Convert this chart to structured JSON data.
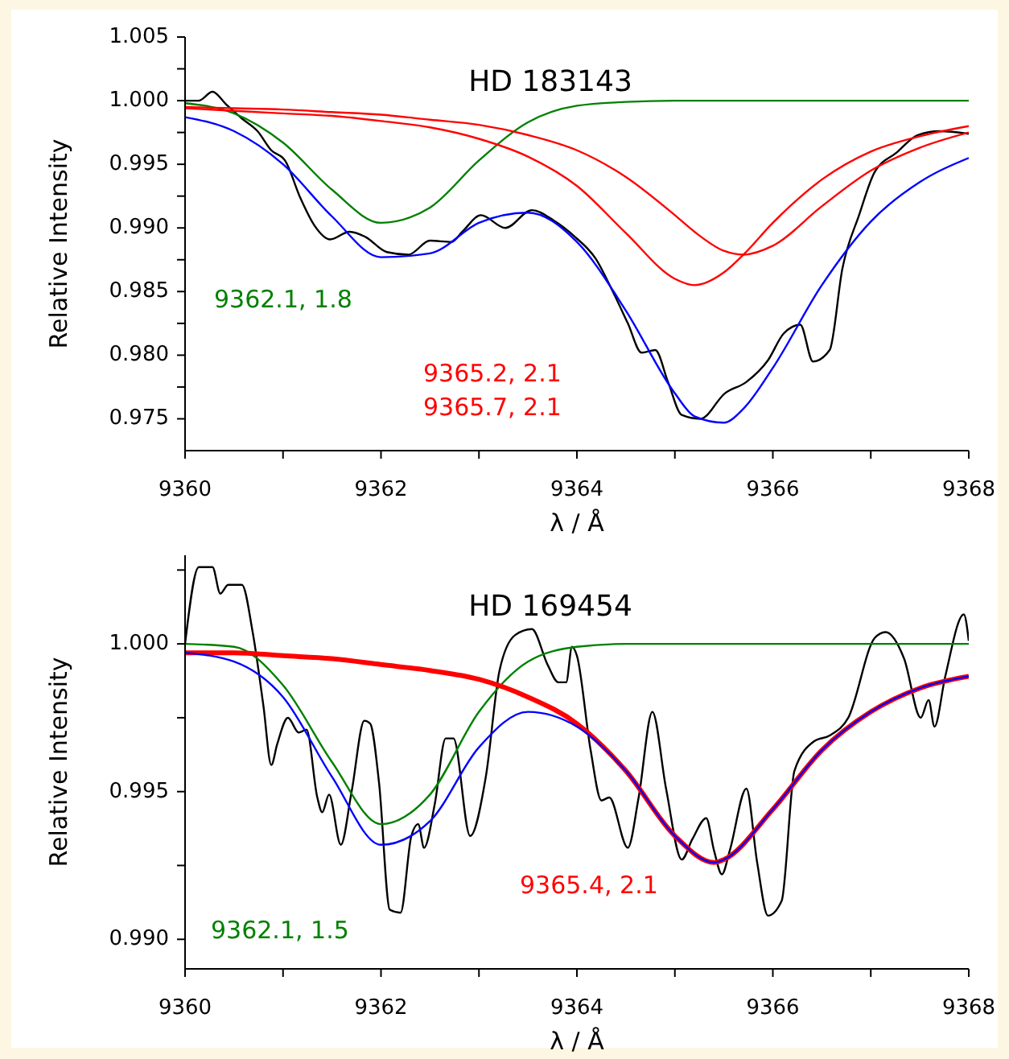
{
  "chart_data": [
    {
      "type": "line",
      "title": "HD 183143",
      "annotations": [
        "9365.2, 2.1",
        "9365.7, 2.1"
      ],
      "xlabel": "λ / Å",
      "ylabel": "Relative Intensity",
      "xlim": [
        9360,
        9368
      ],
      "ylim": [
        0.9725,
        1.005
      ],
      "xticks": [
        9360,
        {
          "value": 9361,
          "label": null
        },
        9362,
        {
          "value": 9363,
          "label": null
        },
        9364,
        {
          "value": 9365,
          "label": null
        },
        9366,
        {
          "value": 9367,
          "label": null
        },
        9368
      ],
      "yticks": [
        {
          "value": 0.975,
          "label": "0.975"
        },
        {
          "value": 0.9775,
          "label": null
        },
        {
          "value": 0.98,
          "label": "0.980"
        },
        {
          "value": 0.9825,
          "label": null
        },
        {
          "value": 0.985,
          "label": "0.985"
        },
        {
          "value": 0.9875,
          "label": null
        },
        {
          "value": 0.99,
          "label": "0.990"
        },
        {
          "value": 0.9925,
          "label": null
        },
        {
          "value": 0.995,
          "label": "0.995"
        },
        {
          "value": 0.9975,
          "label": null
        },
        {
          "value": 1,
          "label": "1.000"
        },
        {
          "value": 1.0025,
          "label": null
        },
        {
          "value": 1.005,
          "label": "1.005"
        }
      ],
      "series": [
        {
          "color": "#000000",
          "x": [
            9360,
            9360.14,
            9360.28,
            9360.42,
            9360.58,
            9360.74,
            9360.88,
            9361.02,
            9361.18,
            9361.32,
            9361.48,
            9361.68,
            9361.84,
            9362.06,
            9362.28,
            9362.5,
            9362.72,
            9362.83,
            9363.02,
            9363.27,
            9363.54,
            9363.76,
            9363.98,
            9364.19,
            9364.36,
            9364.52,
            9364.66,
            9364.8,
            9364.93,
            9365.07,
            9365.26,
            9365.51,
            9365.73,
            9365.95,
            9366.11,
            9366.28,
            9366.41,
            9366.58,
            9366.71,
            9366.88,
            9367.04,
            9367.26,
            9367.48,
            9367.7,
            9368
          ],
          "values": [
            1.0,
            1.0,
            1.0007,
            0.9997,
            0.9986,
            0.9976,
            0.9961,
            0.9953,
            0.9923,
            0.9902,
            0.9891,
            0.9897,
            0.9893,
            0.9881,
            0.9879,
            0.989,
            0.9889,
            0.9897,
            0.991,
            0.99,
            0.9914,
            0.9906,
            0.9893,
            0.9876,
            0.9851,
            0.9825,
            0.9802,
            0.9804,
            0.9779,
            0.9753,
            0.975,
            0.977,
            0.9779,
            0.9796,
            0.9817,
            0.9824,
            0.9795,
            0.9804,
            0.9868,
            0.991,
            0.9944,
            0.9959,
            0.9973,
            0.9976,
            0.9974
          ]
        },
        {
          "color": "#0000ff",
          "x": [
            9360,
            9360.5,
            9361,
            9361.5,
            9362,
            9362.5,
            9363,
            9363.5,
            9364,
            9364.5,
            9365,
            9365.2,
            9365.5,
            9365.7,
            9366,
            9366.5,
            9367,
            9367.5,
            9368
          ],
          "values": [
            0.9987,
            0.9976,
            0.995,
            0.9909,
            0.9877,
            0.988,
            0.9904,
            0.9912,
            0.9889,
            0.9835,
            0.977,
            0.9752,
            0.9747,
            0.9758,
            0.979,
            0.9855,
            0.9905,
            0.9936,
            0.9955
          ]
        },
        {
          "name": "9362.1, 1.8",
          "color": "#008000",
          "x": [
            9360,
            9360.5,
            9361,
            9361.5,
            9362,
            9362.5,
            9363,
            9363.5,
            9364,
            9364.5,
            9365,
            9365.2,
            9365.5,
            9365.7,
            9366,
            9366.5,
            9367,
            9367.5,
            9368
          ],
          "values": [
            0.9998,
            0.999,
            0.9967,
            0.993,
            0.9904,
            0.9916,
            0.9953,
            0.9983,
            0.9996,
            0.9999,
            1.0,
            1.0,
            1.0,
            1.0,
            1.0,
            1.0,
            1.0,
            1.0,
            1.0
          ]
        },
        {
          "color": "#ff0000",
          "x": [
            9360,
            9360.5,
            9361,
            9361.5,
            9362,
            9362.5,
            9363,
            9363.5,
            9364,
            9364.5,
            9365,
            9365.2,
            9365.5,
            9365.7,
            9366,
            9366.5,
            9367,
            9367.5,
            9368
          ],
          "values": [
            0.9994,
            0.9992,
            0.999,
            0.9988,
            0.9984,
            0.9979,
            0.997,
            0.9956,
            0.9933,
            0.9896,
            0.986,
            0.9855,
            0.9865,
            0.9879,
            0.9904,
            0.9938,
            0.996,
            0.9972,
            0.998
          ]
        },
        {
          "color": "#ff0000",
          "x": [
            9360,
            9360.5,
            9361,
            9361.5,
            9362,
            9362.5,
            9363,
            9363.5,
            9364,
            9364.5,
            9365,
            9365.2,
            9365.5,
            9365.7,
            9366,
            9366.5,
            9367,
            9367.5,
            9368
          ],
          "values": [
            0.9995,
            0.9994,
            0.9993,
            0.9991,
            0.9989,
            0.9985,
            0.9981,
            0.9973,
            0.9961,
            0.994,
            0.991,
            0.9897,
            0.9882,
            0.9879,
            0.9886,
            0.9917,
            0.9945,
            0.9963,
            0.9975
          ]
        }
      ]
    },
    {
      "type": "line",
      "title": "HD 169454",
      "xlabel": "λ / Å",
      "ylabel": "Relative Intensity",
      "xlim": [
        9360,
        9368
      ],
      "ylim": [
        0.989,
        1.003
      ],
      "xticks": [
        9360,
        {
          "value": 9361,
          "label": null
        },
        9362,
        {
          "value": 9363,
          "label": null
        },
        9364,
        {
          "value": 9365,
          "label": null
        },
        9366,
        {
          "value": 9367,
          "label": null
        },
        9368
      ],
      "yticks": [
        {
          "value": 0.99,
          "label": "0.990"
        },
        {
          "value": 0.9925,
          "label": null
        },
        {
          "value": 0.995,
          "label": "0.995"
        },
        {
          "value": 0.9975,
          "label": null
        },
        {
          "value": 1,
          "label": "1.000"
        },
        {
          "value": 1.0025,
          "label": null
        }
      ],
      "series": [
        {
          "color": "#000000",
          "x": [
            9360,
            9360.14,
            9360.28,
            9360.36,
            9360.44,
            9360.58,
            9360.69,
            9360.8,
            9360.88,
            9360.94,
            9361.05,
            9361.16,
            9361.24,
            9361.35,
            9361.4,
            9361.47,
            9361.59,
            9361.7,
            9361.83,
            9361.89,
            9361.98,
            9362.09,
            9362.2,
            9362.31,
            9362.38,
            9362.44,
            9362.55,
            9362.66,
            9362.74,
            9362.91,
            9363.07,
            9363.21,
            9363.37,
            9363.54,
            9363.7,
            9363.81,
            9363.89,
            9363.95,
            9364.0,
            9364.14,
            9364.25,
            9364.33,
            9364.52,
            9364.63,
            9364.77,
            9364.91,
            9365.07,
            9365.18,
            9365.32,
            9365.4,
            9365.48,
            9365.56,
            9365.73,
            9365.84,
            9365.95,
            9366.09,
            9366.22,
            9366.42,
            9366.58,
            9366.77,
            9367.04,
            9367.15,
            9367.34,
            9367.51,
            9367.59,
            9367.65,
            9367.76,
            9367.95,
            9368
          ],
          "values": [
            1.0,
            1.0026,
            1.0026,
            1.0017,
            1.002,
            1.002,
            1.0004,
            0.9979,
            0.9959,
            0.9966,
            0.9975,
            0.997,
            0.9971,
            0.9948,
            0.9943,
            0.9949,
            0.9932,
            0.995,
            0.9974,
            0.9973,
            0.9953,
            0.991,
            0.9909,
            0.9935,
            0.9939,
            0.9931,
            0.9946,
            0.9968,
            0.9968,
            0.9935,
            0.9955,
            0.9991,
            1.0003,
            1.0005,
            0.9993,
            0.9987,
            0.9987,
            0.9999,
            0.9996,
            0.9964,
            0.9947,
            0.9948,
            0.9931,
            0.9948,
            0.9977,
            0.9951,
            0.9927,
            0.9934,
            0.9941,
            0.993,
            0.9922,
            0.993,
            0.9951,
            0.9926,
            0.9908,
            0.9913,
            0.9957,
            0.9967,
            0.9969,
            0.9975,
            1.0002,
            1.0004,
            0.9995,
            0.9975,
            0.9981,
            0.9972,
            0.9989,
            1.001,
            1.0001
          ]
        },
        {
          "color": "#008000",
          "name": "9362.1, 1.5",
          "x": [
            9360,
            9360.5,
            9361,
            9361.5,
            9362,
            9362.5,
            9363,
            9363.5,
            9364,
            9364.5,
            9365,
            9365.4,
            9365.5,
            9366,
            9366.5,
            9367,
            9367.5,
            9368
          ],
          "values": [
            1.0,
            0.9999,
            0.9986,
            0.996,
            0.9939,
            0.9949,
            0.9977,
            0.9994,
            0.9999,
            1.0,
            1.0,
            1.0,
            1.0,
            1.0,
            1.0,
            1.0,
            1.0,
            1.0
          ]
        },
        {
          "name": "9365.4, 2.1",
          "color": "#ff0000",
          "x": [
            9360,
            9360.5,
            9361,
            9361.5,
            9362,
            9362.5,
            9363,
            9363.5,
            9364,
            9364.5,
            9365,
            9365.4,
            9365.5,
            9366,
            9366.5,
            9367,
            9367.5,
            9368
          ],
          "values": [
            0.9997,
            0.9997,
            0.9996,
            0.9995,
            0.9993,
            0.9991,
            0.9988,
            0.9982,
            0.9973,
            0.9957,
            0.9935,
            0.9926,
            0.9927,
            0.9944,
            0.9964,
            0.9977,
            0.9985,
            0.9989
          ]
        },
        {
          "color": "#0000ff",
          "x": [
            9360,
            9360.5,
            9361,
            9361.5,
            9362,
            9362.5,
            9363,
            9363.5,
            9364,
            9364.5,
            9365,
            9365.4,
            9365.5,
            9366,
            9366.5,
            9367,
            9367.5,
            9368
          ],
          "values": [
            0.9997,
            0.9994,
            0.9982,
            0.9955,
            0.9932,
            0.994,
            0.9965,
            0.9977,
            0.9972,
            0.9957,
            0.9935,
            0.9926,
            0.9927,
            0.9944,
            0.9964,
            0.9977,
            0.9985,
            0.9989
          ]
        }
      ]
    }
  ]
}
